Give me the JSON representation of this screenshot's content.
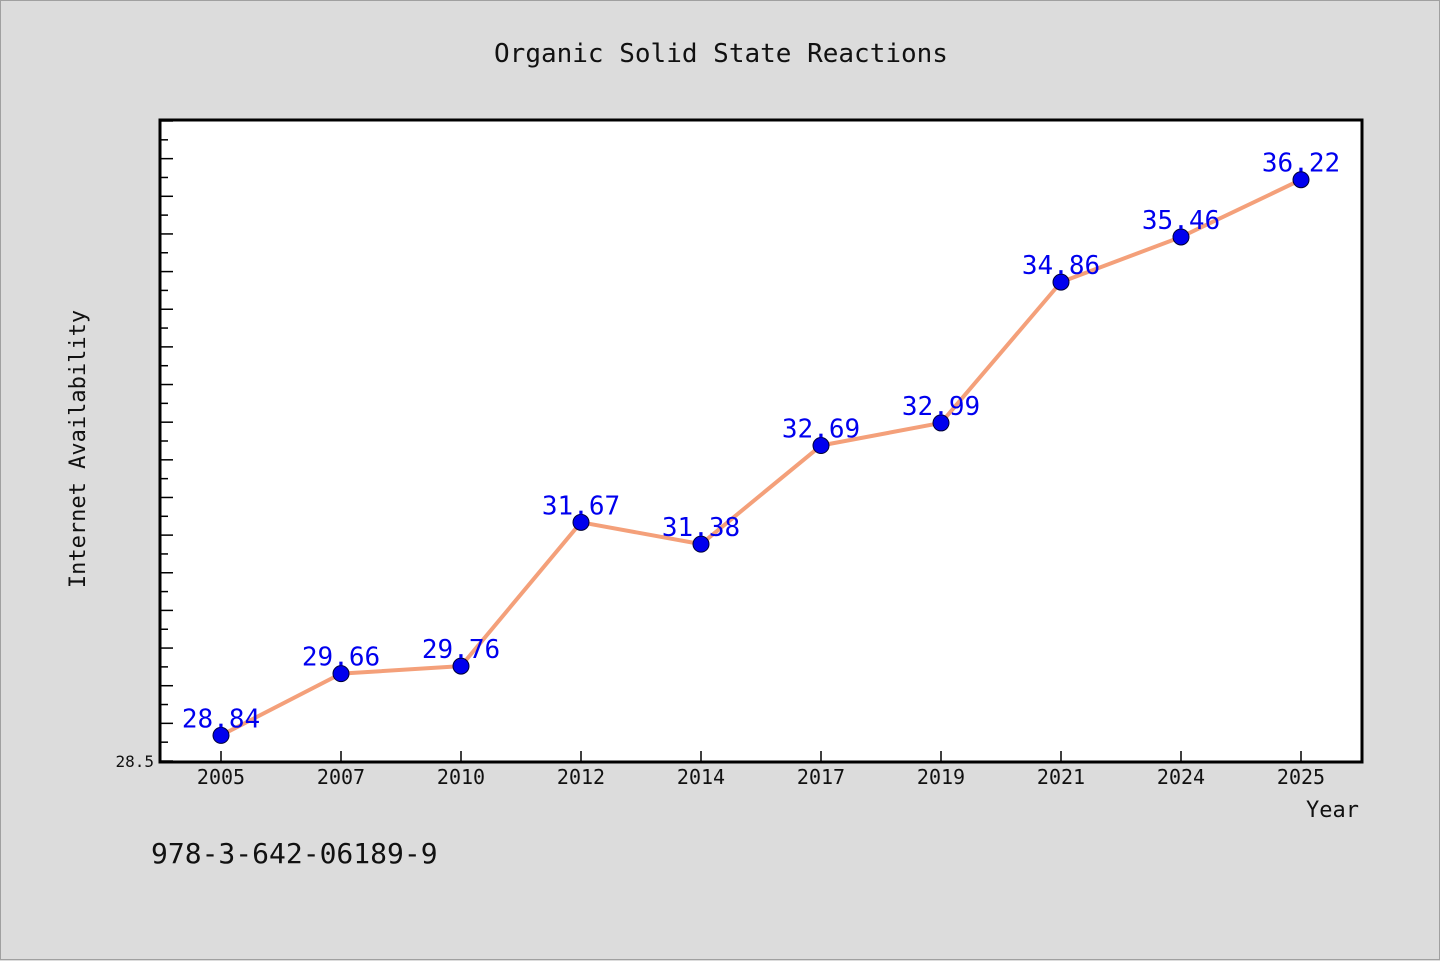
{
  "chart_data": {
    "type": "line",
    "title": "Organic Solid State Reactions",
    "xlabel": "Year",
    "ylabel": "Internet Availability",
    "categories": [
      "2005",
      "2007",
      "2010",
      "2012",
      "2014",
      "2017",
      "2019",
      "2021",
      "2024",
      "2025"
    ],
    "series": [
      {
        "values": [
          28.84,
          29.66,
          29.76,
          31.67,
          31.38,
          32.69,
          32.99,
          34.86,
          35.46,
          36.22
        ]
      }
    ],
    "ylim": [
      28.5,
      37.0
    ],
    "yticks_labeled": [
      "28.5"
    ],
    "grid": false,
    "line_color": "#f4a07a",
    "marker_color": "#0000ee",
    "label_color": "#0000ee"
  },
  "footer": {
    "isbn": "978-3-642-06189-9"
  }
}
